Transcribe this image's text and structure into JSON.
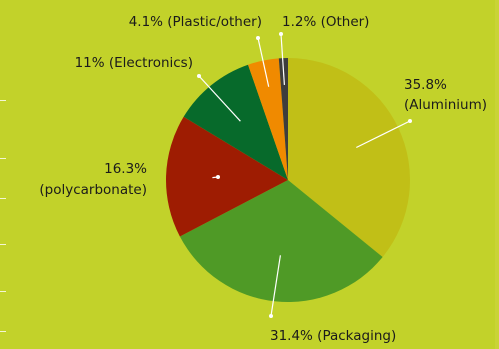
{
  "chart_data": {
    "type": "pie",
    "title": "",
    "slices": [
      {
        "value": 35.8,
        "color": "#c1bf17",
        "label_lines": [
          "35.8%",
          "(Aluminium)"
        ]
      },
      {
        "value": 31.4,
        "color": "#4f9a26",
        "label_lines": [
          "31.4% (Packaging)"
        ]
      },
      {
        "value": 16.3,
        "color": "#9e1c02",
        "label_lines": [
          "16.3%",
          "(polycarbonate)"
        ]
      },
      {
        "value": 11.0,
        "color": "#076a2b",
        "label_lines": [
          "11% (Electronics)"
        ]
      },
      {
        "value": 4.1,
        "color": "#f08a00",
        "label_lines": [
          "4.1% (Plastic/other)"
        ]
      },
      {
        "value": 1.2,
        "color": "#3d3d3d",
        "label_lines": [
          "1.2% (Other)"
        ]
      }
    ],
    "label_color": "#1b1b1b",
    "leader_color": "#ffffff"
  }
}
